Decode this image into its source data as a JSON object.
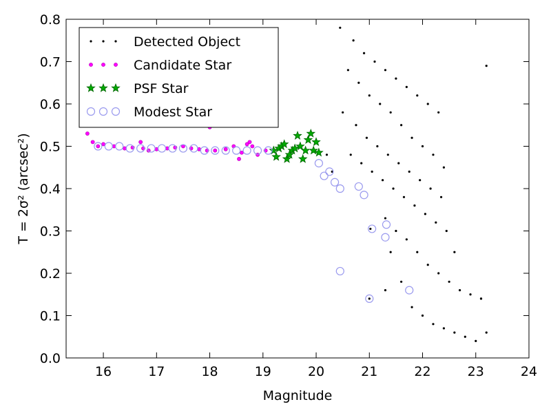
{
  "chart_data": {
    "type": "scatter",
    "xlabel": "Magnitude",
    "ylabel": "T = 2σ² (arcsec²)",
    "xlim": [
      15.3,
      24.0
    ],
    "ylim": [
      0.0,
      0.8
    ],
    "xticks": [
      16,
      17,
      18,
      19,
      20,
      21,
      22,
      23,
      24
    ],
    "yticks": [
      0.0,
      0.1,
      0.2,
      0.3,
      0.4,
      0.5,
      0.6,
      0.7,
      0.8
    ],
    "grid": false,
    "legend_position": "top-left",
    "colors": {
      "detected": "#000000",
      "candidate": "#ff00ff",
      "psf_fill": "#00aa00",
      "psf_edge": "#006400",
      "modest_edge": "#9999ee"
    },
    "series": [
      {
        "name": "Detected Object",
        "marker": "dot",
        "x": [
          20.45,
          20.7,
          20.9,
          21.1,
          21.3,
          21.5,
          21.7,
          21.9,
          22.1,
          22.3,
          20.6,
          20.8,
          21.0,
          21.2,
          21.4,
          21.6,
          21.8,
          22.0,
          22.2,
          22.4,
          20.5,
          20.75,
          20.95,
          21.15,
          21.35,
          21.55,
          21.75,
          21.95,
          22.15,
          22.35,
          20.65,
          20.85,
          21.05,
          21.25,
          21.45,
          21.65,
          21.85,
          22.05,
          22.25,
          22.45,
          21.3,
          21.5,
          21.7,
          21.9,
          22.1,
          22.3,
          22.5,
          22.7,
          22.9,
          23.1,
          21.8,
          22.0,
          22.2,
          22.4,
          22.6,
          22.8,
          23.0,
          23.2,
          21.4,
          21.6,
          20.2,
          20.3,
          19.85,
          21.02,
          21.0,
          21.3,
          22.6,
          23.2,
          23.1
        ],
        "y": [
          0.78,
          0.75,
          0.72,
          0.7,
          0.68,
          0.66,
          0.64,
          0.62,
          0.6,
          0.58,
          0.68,
          0.65,
          0.62,
          0.6,
          0.58,
          0.55,
          0.52,
          0.5,
          0.48,
          0.45,
          0.58,
          0.55,
          0.52,
          0.5,
          0.48,
          0.46,
          0.44,
          0.42,
          0.4,
          0.38,
          0.48,
          0.46,
          0.44,
          0.42,
          0.4,
          0.38,
          0.36,
          0.34,
          0.32,
          0.3,
          0.33,
          0.3,
          0.28,
          0.25,
          0.22,
          0.2,
          0.18,
          0.16,
          0.15,
          0.14,
          0.12,
          0.1,
          0.08,
          0.07,
          0.06,
          0.05,
          0.04,
          0.06,
          0.25,
          0.18,
          0.48,
          0.44,
          0.52,
          0.305,
          0.14,
          0.16,
          0.25,
          0.69,
          0.14
        ]
      },
      {
        "name": "Candidate Star",
        "marker": "small-circle",
        "x": [
          15.7,
          15.8,
          15.9,
          16.0,
          16.2,
          16.4,
          16.55,
          16.7,
          16.85,
          17.0,
          17.2,
          17.35,
          17.5,
          17.65,
          17.8,
          17.95,
          18.1,
          18.3,
          18.45,
          18.6,
          18.7,
          18.8,
          18.9,
          19.05,
          18.55,
          18.75,
          15.75,
          16.75,
          18.0
        ],
        "y": [
          0.53,
          0.51,
          0.5,
          0.505,
          0.5,
          0.495,
          0.497,
          0.51,
          0.49,
          0.493,
          0.495,
          0.497,
          0.5,
          0.495,
          0.493,
          0.49,
          0.49,
          0.493,
          0.5,
          0.485,
          0.505,
          0.5,
          0.48,
          0.49,
          0.47,
          0.51,
          0.55,
          0.495,
          0.545
        ]
      },
      {
        "name": "PSF Star",
        "marker": "star",
        "x": [
          19.2,
          19.3,
          19.45,
          19.55,
          19.65,
          19.7,
          19.8,
          19.9,
          20.0,
          19.25,
          19.5,
          19.75,
          19.95,
          19.35,
          19.6,
          20.05,
          19.85,
          19.4
        ],
        "y": [
          0.49,
          0.495,
          0.47,
          0.49,
          0.525,
          0.5,
          0.49,
          0.53,
          0.51,
          0.475,
          0.48,
          0.47,
          0.49,
          0.5,
          0.495,
          0.485,
          0.515,
          0.505
        ]
      },
      {
        "name": "Modest Star",
        "marker": "open-circle",
        "x": [
          15.9,
          16.1,
          16.3,
          16.5,
          16.7,
          16.9,
          17.1,
          17.3,
          17.5,
          17.7,
          17.9,
          18.1,
          18.3,
          18.5,
          18.7,
          18.9,
          19.1,
          20.05,
          20.15,
          20.25,
          20.35,
          20.45,
          20.8,
          20.9,
          21.05,
          21.3,
          21.32,
          21.75,
          20.45,
          21.0
        ],
        "y": [
          0.5,
          0.5,
          0.5,
          0.495,
          0.495,
          0.495,
          0.495,
          0.495,
          0.495,
          0.495,
          0.49,
          0.49,
          0.49,
          0.49,
          0.49,
          0.49,
          0.49,
          0.46,
          0.43,
          0.44,
          0.415,
          0.4,
          0.405,
          0.385,
          0.305,
          0.285,
          0.315,
          0.16,
          0.205,
          0.14
        ]
      }
    ]
  }
}
